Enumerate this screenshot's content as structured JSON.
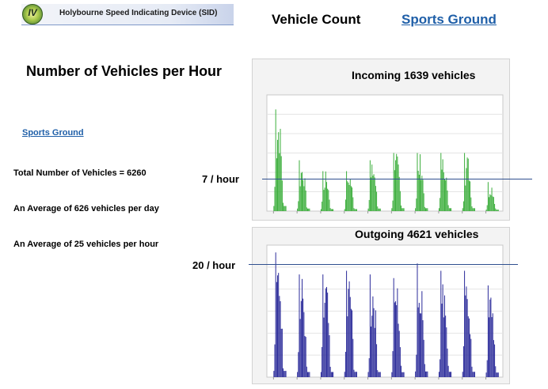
{
  "header": {
    "app_title": "Holybourne Speed Indicating Device  (SID)",
    "logo_mark": "IV",
    "page_heading": "Vehicle Count",
    "nav_link": "Sports Ground"
  },
  "main": {
    "title": "Number of Vehicles per Hour",
    "location_link": "Sports Ground"
  },
  "stats": {
    "total": "Total Number of Vehicles = 6260",
    "per_day": "An Average of 626 vehicles per day",
    "per_hour": "An Average of 25 vehicles per hour"
  },
  "incoming": {
    "title": "Incoming  1639 vehicles",
    "reference_label": "7 / hour",
    "bar_color": "#3cae3c"
  },
  "outgoing": {
    "title": "Outgoing 4621 vehicles",
    "reference_label": "20 / hour",
    "bar_color": "#2b2b9a"
  },
  "chart_data": [
    {
      "type": "bar",
      "title": "Incoming  1639 vehicles",
      "reference_line": 7,
      "reference_label": "7 / hour",
      "days": 10,
      "peak_values": [
        28,
        14,
        11,
        11,
        14,
        16,
        16,
        16,
        16,
        8
      ]
    },
    {
      "type": "bar",
      "title": "Outgoing 4621 vehicles",
      "reference_line": 20,
      "reference_label": "20 / hour",
      "days": 10,
      "peak_values": [
        34,
        28,
        28,
        29,
        28,
        27,
        31,
        29,
        29,
        25
      ]
    }
  ]
}
